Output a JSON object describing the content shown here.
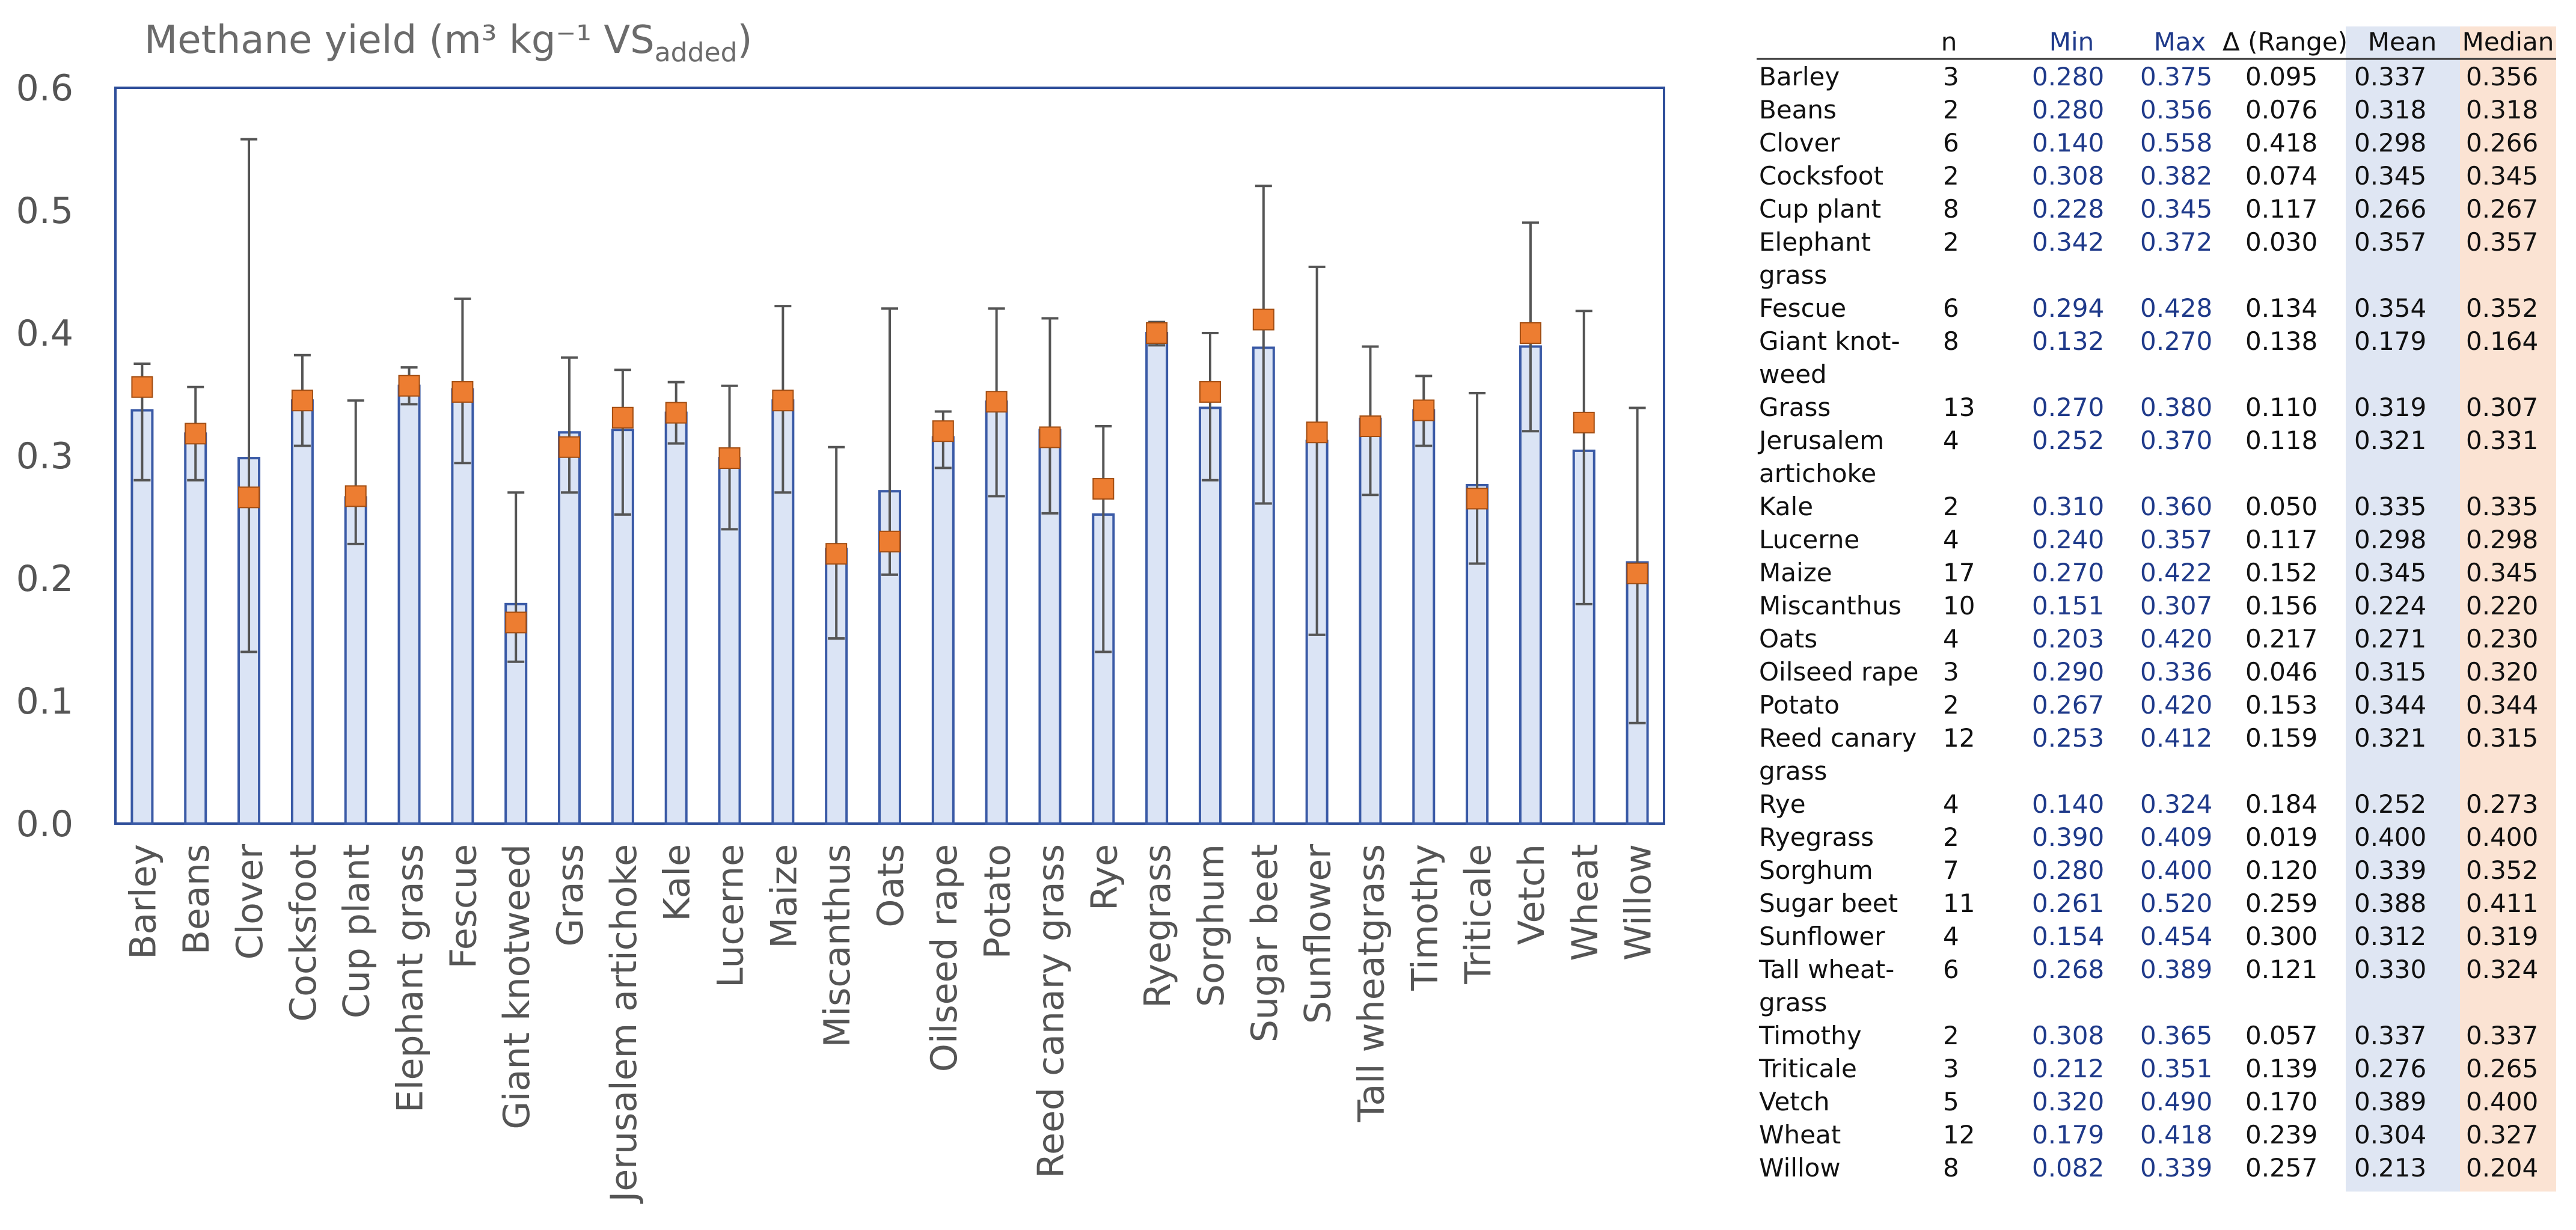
{
  "chart_data": {
    "type": "bar",
    "title": "Methane yield (m³ kg⁻¹ VS",
    "title_subscript": "added",
    "title_close": ")",
    "ylim": [
      0,
      0.6
    ],
    "y_ticks": [
      "0.0",
      "0.1",
      "0.2",
      "0.3",
      "0.4",
      "0.5",
      "0.6"
    ],
    "categories": [
      "Barley",
      "Beans",
      "Clover",
      "Cocksfoot",
      "Cup plant",
      "Elephant  grass",
      "Fescue",
      "Giant knotweed",
      "Grass",
      "Jerusalem artichoke",
      "Kale",
      "Lucerne",
      "Maize",
      "Miscanthus",
      "Oats",
      "Oilseed rape",
      "Potato",
      "Reed canary grass",
      "Rye",
      "Ryegrass",
      "Sorghum",
      "Sugar beet",
      "Sunflower",
      "Tall wheatgrass",
      "Timothy",
      "Triticale",
      "Vetch",
      "Wheat",
      "Willow"
    ],
    "series": [
      {
        "name": "Mean",
        "values": [
          0.337,
          0.318,
          0.298,
          0.345,
          0.266,
          0.357,
          0.354,
          0.179,
          0.319,
          0.321,
          0.335,
          0.298,
          0.345,
          0.224,
          0.271,
          0.315,
          0.344,
          0.321,
          0.252,
          0.4,
          0.339,
          0.388,
          0.312,
          0.33,
          0.337,
          0.276,
          0.389,
          0.304,
          0.213
        ]
      },
      {
        "name": "Median",
        "values": [
          0.356,
          0.318,
          0.266,
          0.345,
          0.267,
          0.357,
          0.352,
          0.164,
          0.307,
          0.331,
          0.335,
          0.298,
          0.345,
          0.22,
          0.23,
          0.32,
          0.344,
          0.315,
          0.273,
          0.4,
          0.352,
          0.411,
          0.319,
          0.324,
          0.337,
          0.265,
          0.4,
          0.327,
          0.204
        ]
      },
      {
        "name": "Min",
        "values": [
          0.28,
          0.28,
          0.14,
          0.308,
          0.228,
          0.342,
          0.294,
          0.132,
          0.27,
          0.252,
          0.31,
          0.24,
          0.27,
          0.151,
          0.203,
          0.29,
          0.267,
          0.253,
          0.14,
          0.39,
          0.28,
          0.261,
          0.154,
          0.268,
          0.308,
          0.212,
          0.32,
          0.179,
          0.082
        ]
      },
      {
        "name": "Max",
        "values": [
          0.375,
          0.356,
          0.558,
          0.382,
          0.345,
          0.372,
          0.428,
          0.27,
          0.38,
          0.37,
          0.36,
          0.357,
          0.422,
          0.307,
          0.42,
          0.336,
          0.42,
          0.412,
          0.324,
          0.409,
          0.4,
          0.52,
          0.454,
          0.389,
          0.365,
          0.351,
          0.49,
          0.418,
          0.339
        ]
      }
    ],
    "colors": {
      "bar_fill": "#dbe4f5",
      "bar_stroke": "#3a5aa6",
      "median_marker": "#ed7d31",
      "median_marker_stroke": "#a24d12",
      "error_bar": "#555555",
      "frame": "#2e4e9a"
    }
  },
  "table": {
    "headers": {
      "name": "",
      "n": "n",
      "min": "Min",
      "max": "Max",
      "range": "Δ (Range)",
      "mean": "Mean",
      "median": "Median"
    },
    "rows": [
      {
        "name": [
          "Barley"
        ],
        "n": "3",
        "min": "0.280",
        "max": "0.375",
        "range": "0.095",
        "mean": "0.337",
        "median": "0.356"
      },
      {
        "name": [
          "Beans"
        ],
        "n": "2",
        "min": "0.280",
        "max": "0.356",
        "range": "0.076",
        "mean": "0.318",
        "median": "0.318"
      },
      {
        "name": [
          "Clover"
        ],
        "n": "6",
        "min": "0.140",
        "max": "0.558",
        "range": "0.418",
        "mean": "0.298",
        "median": "0.266"
      },
      {
        "name": [
          "Cocksfoot"
        ],
        "n": "2",
        "min": "0.308",
        "max": "0.382",
        "range": "0.074",
        "mean": "0.345",
        "median": "0.345"
      },
      {
        "name": [
          "Cup plant"
        ],
        "n": "8",
        "min": "0.228",
        "max": "0.345",
        "range": "0.117",
        "mean": "0.266",
        "median": "0.267"
      },
      {
        "name": [
          "Elephant",
          "grass"
        ],
        "n": "2",
        "min": "0.342",
        "max": "0.372",
        "range": "0.030",
        "mean": "0.357",
        "median": "0.357"
      },
      {
        "name": [
          "Fescue"
        ],
        "n": "6",
        "min": "0.294",
        "max": "0.428",
        "range": "0.134",
        "mean": "0.354",
        "median": "0.352"
      },
      {
        "name": [
          "Giant knot-",
          "weed"
        ],
        "n": "8",
        "min": "0.132",
        "max": "0.270",
        "range": "0.138",
        "mean": "0.179",
        "median": "0.164"
      },
      {
        "name": [
          "Grass"
        ],
        "n": "13",
        "min": "0.270",
        "max": "0.380",
        "range": "0.110",
        "mean": "0.319",
        "median": "0.307"
      },
      {
        "name": [
          "Jerusalem",
          "artichoke"
        ],
        "n": "4",
        "min": "0.252",
        "max": "0.370",
        "range": "0.118",
        "mean": "0.321",
        "median": "0.331"
      },
      {
        "name": [
          "Kale"
        ],
        "n": "2",
        "min": "0.310",
        "max": "0.360",
        "range": "0.050",
        "mean": "0.335",
        "median": "0.335"
      },
      {
        "name": [
          "Lucerne"
        ],
        "n": "4",
        "min": "0.240",
        "max": "0.357",
        "range": "0.117",
        "mean": "0.298",
        "median": "0.298"
      },
      {
        "name": [
          "Maize"
        ],
        "n": "17",
        "min": "0.270",
        "max": "0.422",
        "range": "0.152",
        "mean": "0.345",
        "median": "0.345"
      },
      {
        "name": [
          "Miscanthus"
        ],
        "n": "10",
        "min": "0.151",
        "max": "0.307",
        "range": "0.156",
        "mean": "0.224",
        "median": "0.220"
      },
      {
        "name": [
          "Oats"
        ],
        "n": "4",
        "min": "0.203",
        "max": "0.420",
        "range": "0.217",
        "mean": "0.271",
        "median": "0.230"
      },
      {
        "name": [
          "Oilseed rape"
        ],
        "n": "3",
        "min": "0.290",
        "max": "0.336",
        "range": "0.046",
        "mean": "0.315",
        "median": "0.320"
      },
      {
        "name": [
          "Potato"
        ],
        "n": "2",
        "min": "0.267",
        "max": "0.420",
        "range": "0.153",
        "mean": "0.344",
        "median": "0.344"
      },
      {
        "name": [
          "Reed canary",
          "grass"
        ],
        "n": "12",
        "min": "0.253",
        "max": "0.412",
        "range": "0.159",
        "mean": "0.321",
        "median": "0.315"
      },
      {
        "name": [
          "Rye"
        ],
        "n": "4",
        "min": "0.140",
        "max": "0.324",
        "range": "0.184",
        "mean": "0.252",
        "median": "0.273"
      },
      {
        "name": [
          "Ryegrass"
        ],
        "n": "2",
        "min": "0.390",
        "max": "0.409",
        "range": "0.019",
        "mean": "0.400",
        "median": "0.400"
      },
      {
        "name": [
          "Sorghum"
        ],
        "n": "7",
        "min": "0.280",
        "max": "0.400",
        "range": "0.120",
        "mean": "0.339",
        "median": "0.352"
      },
      {
        "name": [
          "Sugar beet"
        ],
        "n": "11",
        "min": "0.261",
        "max": "0.520",
        "range": "0.259",
        "mean": "0.388",
        "median": "0.411"
      },
      {
        "name": [
          "Sunflower"
        ],
        "n": "4",
        "min": "0.154",
        "max": "0.454",
        "range": "0.300",
        "mean": "0.312",
        "median": "0.319"
      },
      {
        "name": [
          "Tall wheat-",
          "grass"
        ],
        "n": "6",
        "min": "0.268",
        "max": "0.389",
        "range": "0.121",
        "mean": "0.330",
        "median": "0.324"
      },
      {
        "name": [
          "Timothy"
        ],
        "n": "2",
        "min": "0.308",
        "max": "0.365",
        "range": "0.057",
        "mean": "0.337",
        "median": "0.337"
      },
      {
        "name": [
          "Triticale"
        ],
        "n": "3",
        "min": "0.212",
        "max": "0.351",
        "range": "0.139",
        "mean": "0.276",
        "median": "0.265"
      },
      {
        "name": [
          "Vetch"
        ],
        "n": "5",
        "min": "0.320",
        "max": "0.490",
        "range": "0.170",
        "mean": "0.389",
        "median": "0.400"
      },
      {
        "name": [
          "Wheat"
        ],
        "n": "12",
        "min": "0.179",
        "max": "0.418",
        "range": "0.239",
        "mean": "0.304",
        "median": "0.327"
      },
      {
        "name": [
          "Willow"
        ],
        "n": "8",
        "min": "0.082",
        "max": "0.339",
        "range": "0.257",
        "mean": "0.213",
        "median": "0.204"
      }
    ],
    "colors": {
      "mean_bg": "#dfe6f3",
      "median_bg": "#fbe3d3",
      "blue_text": "#1f3a8a",
      "rule": "#333333"
    }
  }
}
